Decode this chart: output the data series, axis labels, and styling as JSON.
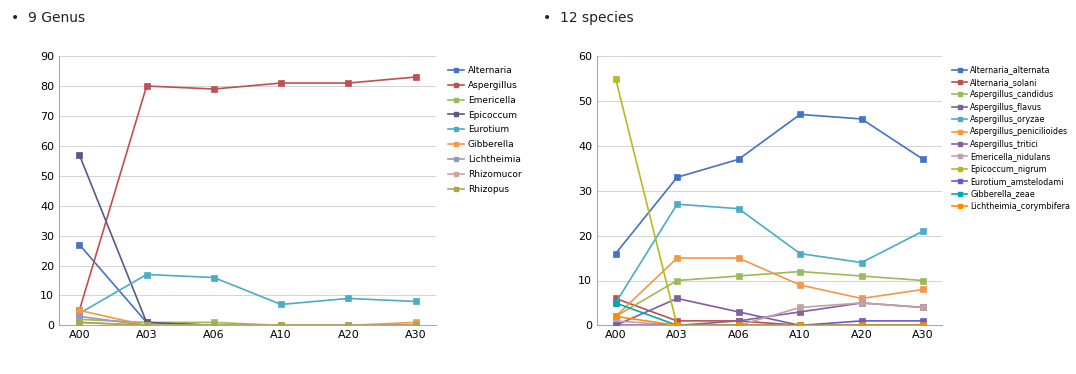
{
  "x_labels": [
    "A00",
    "A03",
    "A06",
    "A10",
    "A20",
    "A30"
  ],
  "title1": "9 Genus",
  "title2": "12 species",
  "genus": {
    "Alternaria": [
      27,
      1,
      0,
      0,
      0,
      0
    ],
    "Aspergillus": [
      5,
      80,
      79,
      81,
      81,
      83
    ],
    "Emericella": [
      2,
      1,
      1,
      0,
      0,
      0
    ],
    "Epicoccum": [
      57,
      1,
      0,
      0,
      0,
      0
    ],
    "Eurotium": [
      4,
      17,
      16,
      7,
      9,
      8
    ],
    "Gibberella": [
      5,
      0,
      0,
      0,
      0,
      1
    ],
    "Lichtheimia": [
      3,
      0,
      0,
      0,
      0,
      0
    ],
    "Rhizomucor": [
      1,
      0,
      0,
      0,
      0,
      0
    ],
    "Rhizopus": [
      1,
      0,
      0,
      0,
      0,
      0
    ]
  },
  "genus_colors": {
    "Alternaria": "#4472C4",
    "Aspergillus": "#C0504D",
    "Emericella": "#9BBB59",
    "Epicoccum": "#595985",
    "Eurotium": "#4BACC6",
    "Gibberella": "#F79646",
    "Lichtheimia": "#9999BB",
    "Rhizomucor": "#D4A0A0",
    "Rhizopus": "#AAAA44"
  },
  "species": {
    "Alternaria_alternata": [
      16,
      33,
      37,
      47,
      46,
      37
    ],
    "Alternaria_solani": [
      6,
      1,
      1,
      0,
      0,
      0
    ],
    "Aspergillus_candidus": [
      2,
      10,
      11,
      12,
      11,
      10
    ],
    "Aspergillus_flavus": [
      0,
      6,
      3,
      0,
      0,
      0
    ],
    "Aspergillus_oryzae": [
      5,
      27,
      26,
      16,
      14,
      21
    ],
    "Aspergillus_penicilioides": [
      2,
      15,
      15,
      9,
      6,
      8
    ],
    "Aspergillus_tritici": [
      0,
      0,
      1,
      3,
      5,
      4
    ],
    "Emericella_nidulans": [
      1,
      0,
      0,
      4,
      5,
      4
    ],
    "Epicoccum_nigrum": [
      55,
      0,
      0,
      0,
      0,
      0
    ],
    "Eurotium_amstelodami": [
      0,
      0,
      0,
      0,
      1,
      1
    ],
    "Gibberella_zeae": [
      5,
      0,
      0,
      0,
      0,
      0
    ],
    "Lichtheimia_corymbifera": [
      2,
      0,
      0,
      0,
      0,
      0
    ]
  },
  "species_colors": {
    "Alternaria_alternata": "#4472C4",
    "Alternaria_solani": "#C0504D",
    "Aspergillus_candidus": "#9BBB59",
    "Aspergillus_flavus": "#7F5F9F",
    "Aspergillus_oryzae": "#4BACC6",
    "Aspergillus_penicilioides": "#F79646",
    "Aspergillus_tritici": "#8064A2",
    "Emericella_nidulans": "#C4A0A8",
    "Epicoccum_nigrum": "#B8B820",
    "Eurotium_amstelodami": "#6A5ACD",
    "Gibberella_zeae": "#00AAAA",
    "Lichtheimia_corymbifera": "#FF8C00"
  },
  "ylim1": [
    0,
    90
  ],
  "ylim2": [
    0,
    60
  ],
  "yticks1": [
    0,
    10,
    20,
    30,
    40,
    50,
    60,
    70,
    80,
    90
  ],
  "yticks2": [
    0,
    10,
    20,
    30,
    40,
    50,
    60
  ],
  "bg_color": "#FFFFFF",
  "grid_color": "#CCCCCC",
  "linewidth": 1.2,
  "markersize": 4,
  "title_fontsize": 10,
  "tick_fontsize": 8,
  "legend_fontsize": 6.5
}
